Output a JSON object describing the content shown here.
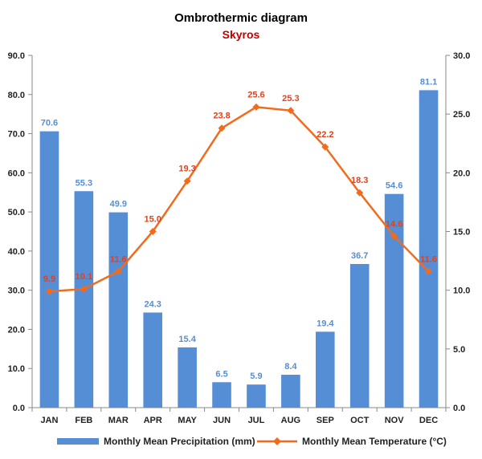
{
  "chart_data": {
    "type": "bar",
    "title": "Ombrothermic diagram",
    "subtitle": "Skyros",
    "categories": [
      "JAN",
      "FEB",
      "MAR",
      "APR",
      "MAY",
      "JUN",
      "JUL",
      "AUG",
      "SEP",
      "OCT",
      "NOV",
      "DEC"
    ],
    "series": [
      {
        "name": "Monthly Mean Precipitation (mm)",
        "type": "bar",
        "axis": "left",
        "color": "#558ED5",
        "label_color": "#558ED5",
        "values": [
          70.6,
          55.3,
          49.9,
          24.3,
          15.4,
          6.5,
          5.9,
          8.4,
          19.4,
          36.7,
          54.6,
          81.1
        ]
      },
      {
        "name": "Monthly Mean Temperature (°C)",
        "type": "line",
        "axis": "right",
        "color": "#F26B1D",
        "label_color": "#E2421B",
        "values": [
          9.9,
          10.1,
          11.6,
          15.0,
          19.3,
          23.8,
          25.6,
          25.3,
          22.2,
          18.3,
          14.6,
          11.6
        ]
      }
    ],
    "y_left": {
      "min": 0,
      "max": 90,
      "step": 10,
      "ticks": [
        "0.0",
        "10.0",
        "20.0",
        "30.0",
        "40.0",
        "50.0",
        "60.0",
        "70.0",
        "80.0",
        "90.0"
      ]
    },
    "y_right": {
      "min": 0,
      "max": 30,
      "step": 5,
      "ticks": [
        "0.0",
        "5.0",
        "10.0",
        "15.0",
        "20.0",
        "25.0",
        "30.0"
      ]
    },
    "grid": false,
    "legend_position": "bottom",
    "subtitle_color": "#C00000"
  }
}
